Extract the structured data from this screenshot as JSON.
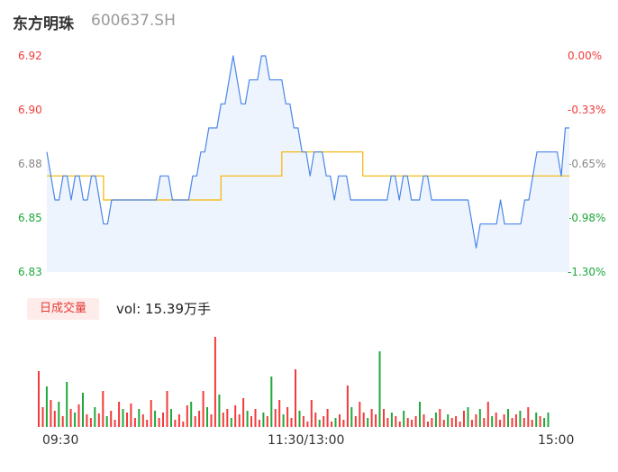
{
  "header": {
    "name": "东方明珠",
    "code": "600637.SH"
  },
  "colors": {
    "price_line": "#4a86e8",
    "price_fill": "#eef4fd",
    "avg_line": "#f5b400",
    "up": "#f23b3b",
    "down": "#1fa83c",
    "neutral": "#888888"
  },
  "volume_panel": {
    "tag": "日成交量",
    "summary": "vol: 15.39万手"
  },
  "chart_data": {
    "type": "line",
    "title": "",
    "xlabel": "",
    "ylabel": "",
    "x_ticks": [
      "09:30",
      "11:30/13:00",
      "15:00"
    ],
    "price_axis": {
      "ylim": [
        6.83,
        6.92
      ],
      "ticks": [
        "6.92",
        "6.90",
        "6.88",
        "6.85",
        "6.83"
      ]
    },
    "pct_axis": {
      "ticks": [
        "0.00%",
        "-0.33%",
        "-0.65%",
        "-0.98%",
        "-1.30%"
      ]
    },
    "prev_close": 6.92,
    "price_series": [
      6.88,
      6.87,
      6.86,
      6.86,
      6.87,
      6.87,
      6.86,
      6.87,
      6.87,
      6.86,
      6.86,
      6.87,
      6.87,
      6.86,
      6.85,
      6.85,
      6.86,
      6.86,
      6.86,
      6.86,
      6.86,
      6.86,
      6.86,
      6.86,
      6.86,
      6.86,
      6.86,
      6.86,
      6.87,
      6.87,
      6.87,
      6.86,
      6.86,
      6.86,
      6.86,
      6.86,
      6.87,
      6.87,
      6.88,
      6.88,
      6.89,
      6.89,
      6.89,
      6.9,
      6.9,
      6.91,
      6.92,
      6.91,
      6.9,
      6.9,
      6.91,
      6.91,
      6.91,
      6.92,
      6.92,
      6.91,
      6.91,
      6.91,
      6.91,
      6.9,
      6.9,
      6.89,
      6.89,
      6.88,
      6.88,
      6.87,
      6.88,
      6.88,
      6.88,
      6.87,
      6.87,
      6.86,
      6.87,
      6.87,
      6.87,
      6.86,
      6.86,
      6.86,
      6.86,
      6.86,
      6.86,
      6.86,
      6.86,
      6.86,
      6.86,
      6.87,
      6.87,
      6.86,
      6.87,
      6.87,
      6.86,
      6.86,
      6.86,
      6.87,
      6.87,
      6.86,
      6.86,
      6.86,
      6.86,
      6.86,
      6.86,
      6.86,
      6.86,
      6.86,
      6.86,
      6.85,
      6.84,
      6.85,
      6.85,
      6.85,
      6.85,
      6.85,
      6.86,
      6.85,
      6.85,
      6.85,
      6.85,
      6.85,
      6.86,
      6.86,
      6.87,
      6.88,
      6.88,
      6.88,
      6.88,
      6.88,
      6.88,
      6.87,
      6.89,
      6.89
    ],
    "avg_series": [
      6.87,
      6.87,
      6.87,
      6.87,
      6.87,
      6.87,
      6.87,
      6.87,
      6.87,
      6.87,
      6.87,
      6.87,
      6.87,
      6.87,
      6.86,
      6.86,
      6.86,
      6.86,
      6.86,
      6.86,
      6.86,
      6.86,
      6.86,
      6.86,
      6.86,
      6.86,
      6.86,
      6.86,
      6.86,
      6.86,
      6.86,
      6.86,
      6.86,
      6.86,
      6.86,
      6.86,
      6.86,
      6.86,
      6.86,
      6.86,
      6.86,
      6.86,
      6.86,
      6.87,
      6.87,
      6.87,
      6.87,
      6.87,
      6.87,
      6.87,
      6.87,
      6.87,
      6.87,
      6.87,
      6.87,
      6.87,
      6.87,
      6.87,
      6.88,
      6.88,
      6.88,
      6.88,
      6.88,
      6.88,
      6.88,
      6.88,
      6.88,
      6.88,
      6.88,
      6.88,
      6.88,
      6.88,
      6.88,
      6.88,
      6.88,
      6.88,
      6.88,
      6.88,
      6.87,
      6.87,
      6.87,
      6.87,
      6.87,
      6.87,
      6.87,
      6.87,
      6.87,
      6.87,
      6.87,
      6.87,
      6.87,
      6.87,
      6.87,
      6.87,
      6.87,
      6.87,
      6.87,
      6.87,
      6.87,
      6.87,
      6.87,
      6.87,
      6.87,
      6.87,
      6.87,
      6.87,
      6.87,
      6.87,
      6.87,
      6.87,
      6.87,
      6.87,
      6.87,
      6.87,
      6.87,
      6.87,
      6.87,
      6.87,
      6.87,
      6.87,
      6.87,
      6.87,
      6.87,
      6.87,
      6.87,
      6.87,
      6.87,
      6.87,
      6.87,
      6.87
    ],
    "volume_series": [
      {
        "v": 0.62,
        "d": "up"
      },
      {
        "v": 0.22,
        "d": "up"
      },
      {
        "v": 0.45,
        "d": "down"
      },
      {
        "v": 0.3,
        "d": "up"
      },
      {
        "v": 0.18,
        "d": "up"
      },
      {
        "v": 0.28,
        "d": "down"
      },
      {
        "v": 0.12,
        "d": "up"
      },
      {
        "v": 0.5,
        "d": "down"
      },
      {
        "v": 0.2,
        "d": "up"
      },
      {
        "v": 0.16,
        "d": "down"
      },
      {
        "v": 0.25,
        "d": "up"
      },
      {
        "v": 0.38,
        "d": "down"
      },
      {
        "v": 0.14,
        "d": "up"
      },
      {
        "v": 0.1,
        "d": "up"
      },
      {
        "v": 0.22,
        "d": "down"
      },
      {
        "v": 0.15,
        "d": "up"
      },
      {
        "v": 0.4,
        "d": "up"
      },
      {
        "v": 0.12,
        "d": "down"
      },
      {
        "v": 0.18,
        "d": "up"
      },
      {
        "v": 0.08,
        "d": "up"
      },
      {
        "v": 0.28,
        "d": "up"
      },
      {
        "v": 0.2,
        "d": "down"
      },
      {
        "v": 0.16,
        "d": "up"
      },
      {
        "v": 0.26,
        "d": "up"
      },
      {
        "v": 0.1,
        "d": "up"
      },
      {
        "v": 0.2,
        "d": "down"
      },
      {
        "v": 0.14,
        "d": "up"
      },
      {
        "v": 0.08,
        "d": "up"
      },
      {
        "v": 0.3,
        "d": "up"
      },
      {
        "v": 0.18,
        "d": "down"
      },
      {
        "v": 0.1,
        "d": "up"
      },
      {
        "v": 0.16,
        "d": "up"
      },
      {
        "v": 0.4,
        "d": "up"
      },
      {
        "v": 0.2,
        "d": "down"
      },
      {
        "v": 0.08,
        "d": "up"
      },
      {
        "v": 0.14,
        "d": "up"
      },
      {
        "v": 0.06,
        "d": "up"
      },
      {
        "v": 0.24,
        "d": "up"
      },
      {
        "v": 0.28,
        "d": "down"
      },
      {
        "v": 0.12,
        "d": "up"
      },
      {
        "v": 0.18,
        "d": "up"
      },
      {
        "v": 0.4,
        "d": "up"
      },
      {
        "v": 0.22,
        "d": "down"
      },
      {
        "v": 0.14,
        "d": "up"
      },
      {
        "v": 1.0,
        "d": "up"
      },
      {
        "v": 0.36,
        "d": "down"
      },
      {
        "v": 0.16,
        "d": "up"
      },
      {
        "v": 0.2,
        "d": "up"
      },
      {
        "v": 0.1,
        "d": "down"
      },
      {
        "v": 0.24,
        "d": "up"
      },
      {
        "v": 0.14,
        "d": "up"
      },
      {
        "v": 0.32,
        "d": "up"
      },
      {
        "v": 0.18,
        "d": "down"
      },
      {
        "v": 0.12,
        "d": "up"
      },
      {
        "v": 0.2,
        "d": "up"
      },
      {
        "v": 0.08,
        "d": "up"
      },
      {
        "v": 0.16,
        "d": "down"
      },
      {
        "v": 0.12,
        "d": "up"
      },
      {
        "v": 0.56,
        "d": "down"
      },
      {
        "v": 0.2,
        "d": "up"
      },
      {
        "v": 0.3,
        "d": "up"
      },
      {
        "v": 0.14,
        "d": "down"
      },
      {
        "v": 0.22,
        "d": "up"
      },
      {
        "v": 0.1,
        "d": "up"
      },
      {
        "v": 0.64,
        "d": "up"
      },
      {
        "v": 0.18,
        "d": "down"
      },
      {
        "v": 0.12,
        "d": "up"
      },
      {
        "v": 0.06,
        "d": "up"
      },
      {
        "v": 0.3,
        "d": "up"
      },
      {
        "v": 0.16,
        "d": "up"
      },
      {
        "v": 0.08,
        "d": "down"
      },
      {
        "v": 0.12,
        "d": "up"
      },
      {
        "v": 0.2,
        "d": "up"
      },
      {
        "v": 0.06,
        "d": "up"
      },
      {
        "v": 0.1,
        "d": "down"
      },
      {
        "v": 0.14,
        "d": "up"
      },
      {
        "v": 0.08,
        "d": "up"
      },
      {
        "v": 0.46,
        "d": "up"
      },
      {
        "v": 0.22,
        "d": "down"
      },
      {
        "v": 0.12,
        "d": "up"
      },
      {
        "v": 0.28,
        "d": "up"
      },
      {
        "v": 0.16,
        "d": "up"
      },
      {
        "v": 0.1,
        "d": "down"
      },
      {
        "v": 0.2,
        "d": "up"
      },
      {
        "v": 0.14,
        "d": "up"
      },
      {
        "v": 0.84,
        "d": "down"
      },
      {
        "v": 0.2,
        "d": "up"
      },
      {
        "v": 0.1,
        "d": "up"
      },
      {
        "v": 0.16,
        "d": "down"
      },
      {
        "v": 0.12,
        "d": "up"
      },
      {
        "v": 0.06,
        "d": "up"
      },
      {
        "v": 0.18,
        "d": "down"
      },
      {
        "v": 0.1,
        "d": "up"
      },
      {
        "v": 0.08,
        "d": "up"
      },
      {
        "v": 0.12,
        "d": "up"
      },
      {
        "v": 0.28,
        "d": "down"
      },
      {
        "v": 0.14,
        "d": "up"
      },
      {
        "v": 0.06,
        "d": "up"
      },
      {
        "v": 0.1,
        "d": "up"
      },
      {
        "v": 0.16,
        "d": "down"
      },
      {
        "v": 0.2,
        "d": "up"
      },
      {
        "v": 0.08,
        "d": "up"
      },
      {
        "v": 0.14,
        "d": "down"
      },
      {
        "v": 0.1,
        "d": "up"
      },
      {
        "v": 0.12,
        "d": "up"
      },
      {
        "v": 0.06,
        "d": "up"
      },
      {
        "v": 0.18,
        "d": "up"
      },
      {
        "v": 0.22,
        "d": "down"
      },
      {
        "v": 0.08,
        "d": "up"
      },
      {
        "v": 0.14,
        "d": "up"
      },
      {
        "v": 0.2,
        "d": "down"
      },
      {
        "v": 0.1,
        "d": "up"
      },
      {
        "v": 0.28,
        "d": "up"
      },
      {
        "v": 0.12,
        "d": "down"
      },
      {
        "v": 0.16,
        "d": "up"
      },
      {
        "v": 0.08,
        "d": "up"
      },
      {
        "v": 0.14,
        "d": "up"
      },
      {
        "v": 0.2,
        "d": "down"
      },
      {
        "v": 0.1,
        "d": "up"
      },
      {
        "v": 0.14,
        "d": "up"
      },
      {
        "v": 0.18,
        "d": "down"
      },
      {
        "v": 0.1,
        "d": "up"
      },
      {
        "v": 0.22,
        "d": "up"
      },
      {
        "v": 0.08,
        "d": "up"
      },
      {
        "v": 0.16,
        "d": "down"
      },
      {
        "v": 0.12,
        "d": "up"
      },
      {
        "v": 0.1,
        "d": "down"
      },
      {
        "v": 0.16,
        "d": "down"
      }
    ]
  }
}
